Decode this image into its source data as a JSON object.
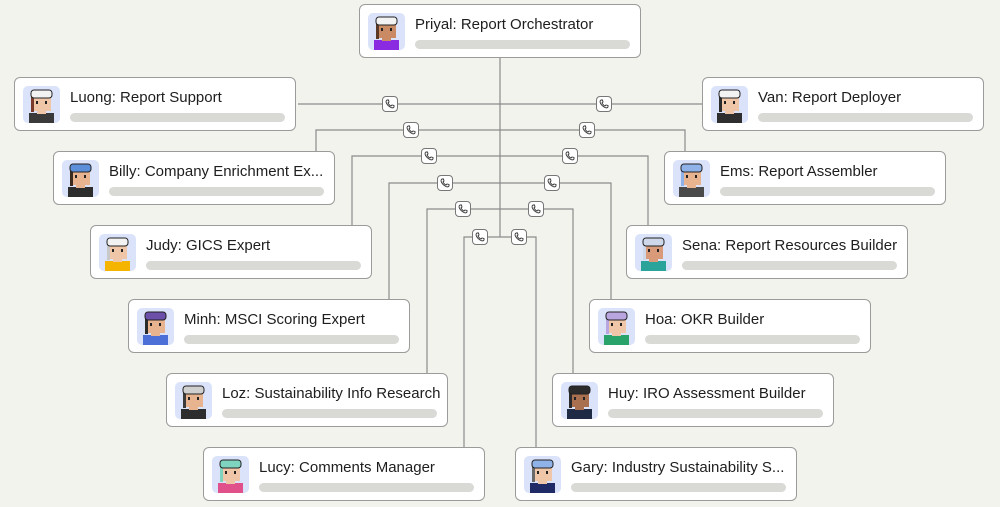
{
  "agents": [
    {
      "label": "Priyal: Report Orchestrator",
      "hat": "#f2f2f2",
      "skin": "#c98a64",
      "shirt": "#8a2be2",
      "hair": "#5a3a26"
    },
    {
      "label": "Luong: Report Support",
      "hat": "#f2f2f2",
      "skin": "#f0c6a8",
      "shirt": "#3a3a3a",
      "hair": "#7a3b2a"
    },
    {
      "label": "Van: Report Deployer",
      "hat": "#f2f2f2",
      "skin": "#f0c6a8",
      "shirt": "#2f2f2f",
      "hair": "#2b2b2b"
    },
    {
      "label": "Billy: Company Enrichment Ex...",
      "hat": "#5b8fd9",
      "skin": "#e8b48f",
      "shirt": "#2d2d2d",
      "hair": "#3b2a1e"
    },
    {
      "label": "Ems: Report Assembler",
      "hat": "#8fb3e8",
      "skin": "#e8b48f",
      "shirt": "#4a4a4a",
      "hair": "#8fb3e8"
    },
    {
      "label": "Judy: GICS Expert",
      "hat": "#f2f2f2",
      "skin": "#f0c6a8",
      "shirt": "#f4b400",
      "hair": "#c8c8c8"
    },
    {
      "label": "Sena: Report Resources Builder",
      "hat": "#cfd8e8",
      "skin": "#d89a78",
      "shirt": "#2aa39a",
      "hair": "#cfd8e8"
    },
    {
      "label": "Minh: MSCI Scoring Expert",
      "hat": "#6b4fa8",
      "skin": "#e8b48f",
      "shirt": "#4b6fd6",
      "hair": "#2b2b2b"
    },
    {
      "label": "Hoa: OKR Builder",
      "hat": "#b9a6e0",
      "skin": "#f0c6a8",
      "shirt": "#2aa36a",
      "hair": "#b9a6e0"
    },
    {
      "label": "Loz: Sustainability Info Research",
      "hat": "#cfcfcf",
      "skin": "#e8b48f",
      "shirt": "#2d2d2d",
      "hair": "#3b3b3b"
    },
    {
      "label": "Huy: IRO Assessment Builder",
      "hat": "#2b2b2b",
      "skin": "#a8704e",
      "shirt": "#1f2a44",
      "hair": "#2b2b2b"
    },
    {
      "label": "Lucy: Comments Manager",
      "hat": "#7fd4c0",
      "skin": "#f0c6a8",
      "shirt": "#e0508a",
      "hair": "#7fd4c0"
    },
    {
      "label": "Gary: Industry Sustainability S...",
      "hat": "#8fb3e8",
      "skin": "#f0c6a8",
      "shirt": "#1f2a66",
      "hair": "#6a6a6a"
    }
  ],
  "connector_icon": "phone-icon",
  "colors": {
    "background": "#f3f3ee",
    "line": "#8a8c8a",
    "avatar_bg": "#dbe3fb",
    "placeholder_bar": "#d9dad6"
  }
}
